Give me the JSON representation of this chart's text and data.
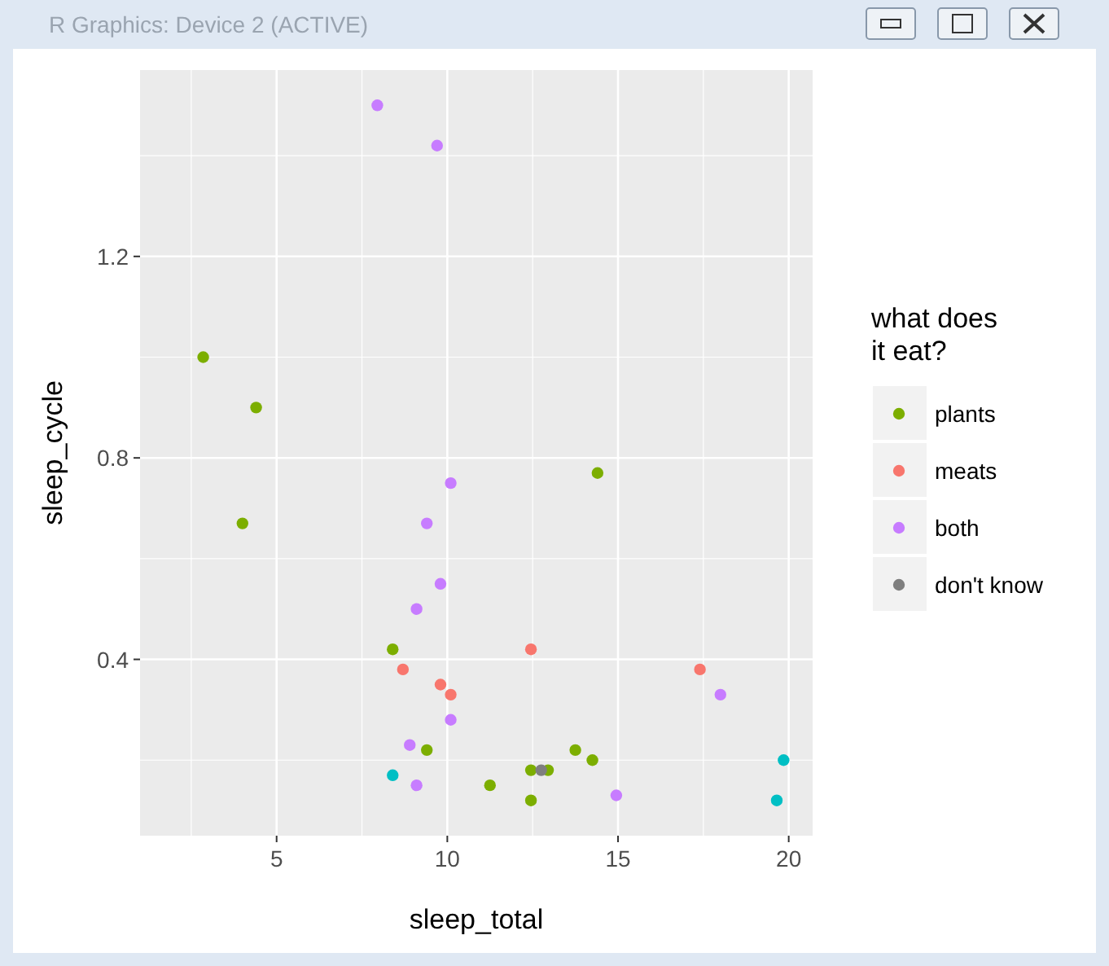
{
  "chart_data": {
    "type": "scatter",
    "xlabel": "sleep_total",
    "ylabel": "sleep_cycle",
    "legend_title": "what does\nit eat?",
    "annotations": [
      "R Graphics: Device 2 (ACTIVE)"
    ],
    "xlim": [
      1,
      20.7
    ],
    "ylim": [
      0.05,
      1.57
    ],
    "xticks": [
      5,
      10,
      15,
      20
    ],
    "yticks": [
      0.4,
      0.8,
      1.2
    ],
    "grid": true,
    "legend": "right",
    "marker": "circle",
    "series": [
      {
        "name": "plants",
        "color": "#7cae00",
        "x": [
          2.85,
          4.4,
          4.0,
          14.4,
          8.4,
          9.4,
          11.25,
          12.45,
          12.45,
          12.95,
          13.75,
          14.25
        ],
        "values": [
          1.0,
          0.9,
          0.67,
          0.77,
          0.42,
          0.22,
          0.15,
          0.18,
          0.12,
          0.18,
          0.22,
          0.2
        ]
      },
      {
        "name": "meats",
        "color": "#f8766d",
        "x": [
          8.7,
          12.45,
          9.8,
          10.1,
          17.4
        ],
        "values": [
          0.38,
          0.42,
          0.35,
          0.33,
          0.38
        ]
      },
      {
        "name": "both",
        "color": "#c77cff",
        "x": [
          7.95,
          9.7,
          10.1,
          9.4,
          9.8,
          9.1,
          10.1,
          8.9,
          9.1,
          14.95,
          18.0
        ],
        "values": [
          1.5,
          1.42,
          0.75,
          0.67,
          0.55,
          0.5,
          0.28,
          0.23,
          0.15,
          0.13,
          0.33
        ]
      },
      {
        "name": "don't know",
        "color": "#7f7f7f",
        "x": [
          12.75
        ],
        "values": [
          0.18
        ]
      },
      {
        "color": "#00bfc4",
        "x": [
          8.4,
          19.85,
          19.65
        ],
        "values": [
          0.17,
          0.2,
          0.12
        ]
      }
    ]
  }
}
